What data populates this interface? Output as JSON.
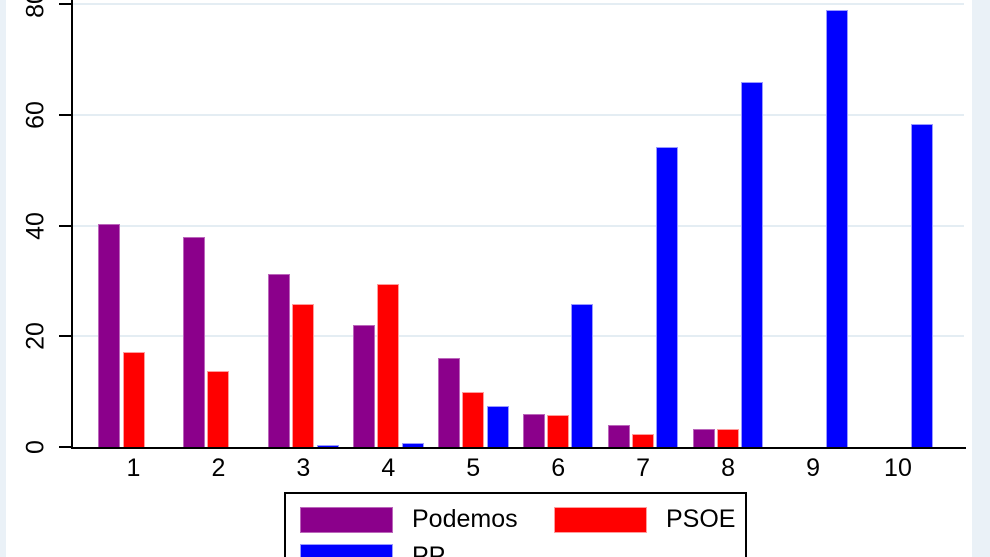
{
  "chart_data": {
    "type": "bar",
    "title": "",
    "xlabel": "",
    "ylabel": "",
    "categories": [
      "1",
      "2",
      "3",
      "4",
      "5",
      "6",
      "7",
      "8",
      "9",
      "10"
    ],
    "series": [
      {
        "name": "Podemos",
        "color": "#8B008B",
        "outline": "#bb66bb",
        "values": [
          40.3,
          38.0,
          31.3,
          22.0,
          16.0,
          6.0,
          3.9,
          3.2,
          0,
          0
        ]
      },
      {
        "name": "PSOE",
        "color": "#FF0000",
        "outline": "#ff9c9c",
        "values": [
          17.1,
          13.7,
          25.8,
          29.5,
          9.9,
          5.8,
          2.4,
          3.2,
          0,
          0
        ]
      },
      {
        "name": "PP",
        "color": "#0000FF",
        "outline": "#9a9aff",
        "values": [
          0,
          0,
          0.4,
          0.7,
          7.5,
          25.8,
          54.2,
          66.0,
          79.0,
          58.3
        ]
      }
    ],
    "yticks": [
      0,
      20,
      40,
      60,
      80
    ],
    "ylim": [
      0,
      80
    ],
    "grid": true,
    "legend_position": "bottom",
    "legend_entries": [
      "Podemos",
      "PSOE",
      "PP"
    ]
  },
  "palette": {
    "outer_background": "#eaf1f7",
    "plot_background": "#ffffff",
    "gridline": "#e4edf3",
    "axis": "#000000",
    "tick_text": "#000000"
  }
}
